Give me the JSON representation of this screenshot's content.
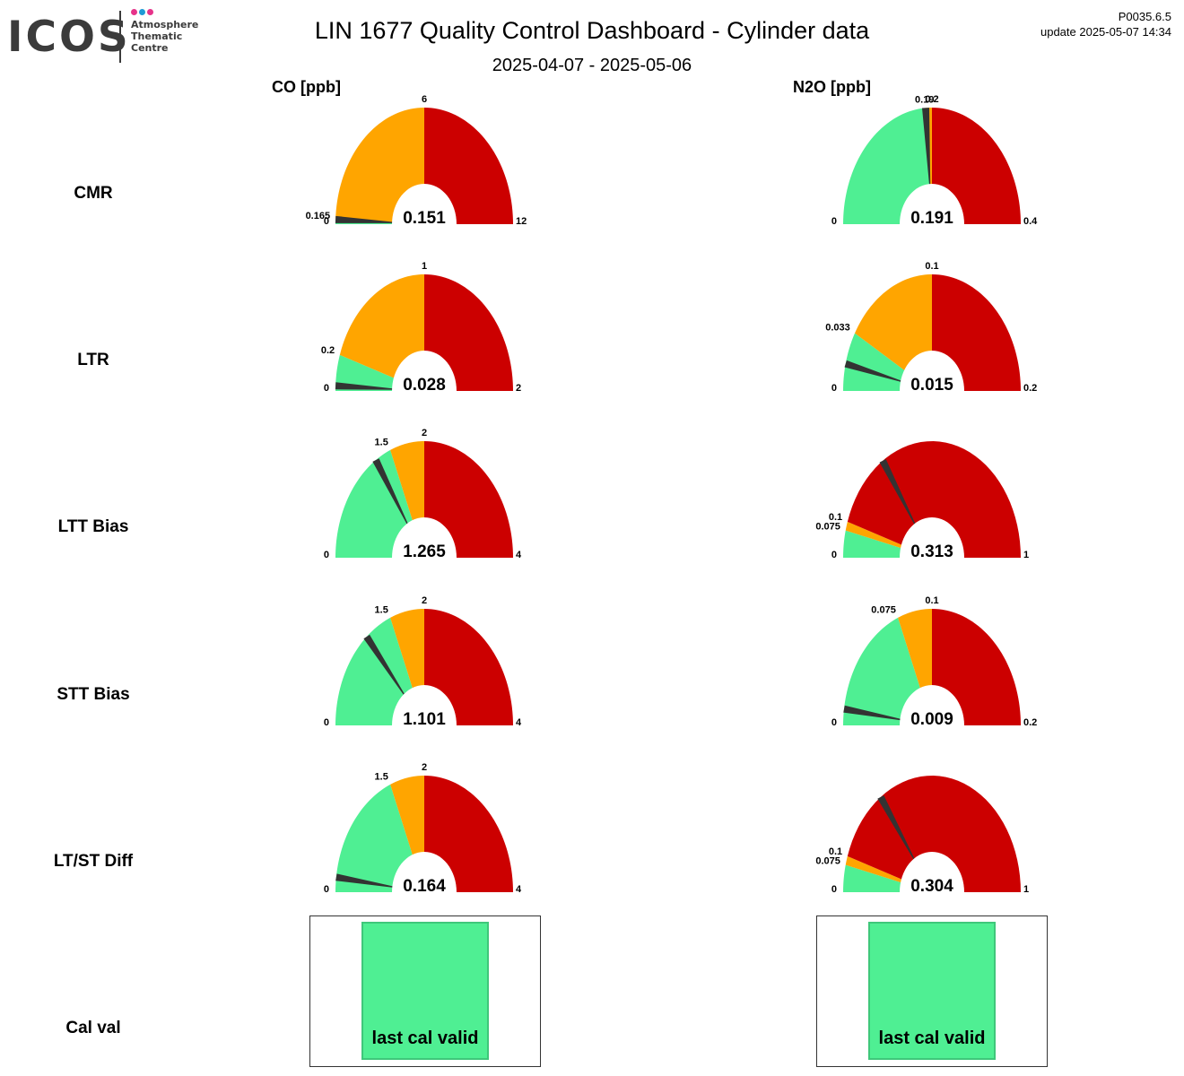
{
  "header": {
    "logo_text": "ICOS",
    "logo_subtitle": [
      "Atmosphere",
      "Thematic",
      "Centre"
    ],
    "logo_dot_colors": [
      "#e6338a",
      "#1f9bd6",
      "#e6338a"
    ],
    "title": "LIN 1677 Quality Control Dashboard - Cylinder data",
    "date_range": "2025-04-07 - 2025-05-06",
    "version": "P0035.6.5",
    "update": "update  2025-05-07 14:34"
  },
  "columns": [
    {
      "key": "co",
      "label": "CO [ppb]"
    },
    {
      "key": "n2o",
      "label": "N2O [ppb]"
    }
  ],
  "rows": [
    "CMR",
    "LTR",
    "LTT Bias",
    "STT Bias",
    "LT/ST Diff",
    "Cal val"
  ],
  "colors": {
    "good": "#4fef93",
    "warn": "#ffa500",
    "bad": "#cc0000",
    "needle": "#333333"
  },
  "chart_data": [
    {
      "type": "gauge",
      "row": "CMR",
      "column": "CO [ppb]",
      "value": 0.151,
      "value_label": "0.151",
      "min": 0,
      "max": 12,
      "green_to": 0.165,
      "orange_to": 6,
      "min_label": "0",
      "max_label": "12",
      "green_label": "0.165",
      "orange_label": "6"
    },
    {
      "type": "gauge",
      "row": "CMR",
      "column": "N2O [ppb]",
      "value": 0.191,
      "value_label": "0.191",
      "min": 0,
      "max": 0.4,
      "green_to": 0.19,
      "orange_to": 0.2,
      "min_label": "0",
      "max_label": "0.4",
      "green_label": "0.19",
      "orange_label": "0.2"
    },
    {
      "type": "gauge",
      "row": "LTR",
      "column": "CO [ppb]",
      "value": 0.028,
      "value_label": "0.028",
      "min": 0,
      "max": 2,
      "green_to": 0.2,
      "orange_to": 1,
      "min_label": "0",
      "max_label": "2",
      "green_label": "0.2",
      "orange_label": "1"
    },
    {
      "type": "gauge",
      "row": "LTR",
      "column": "N2O [ppb]",
      "value": 0.015,
      "value_label": "0.015",
      "min": 0,
      "max": 0.2,
      "green_to": 0.033,
      "orange_to": 0.1,
      "min_label": "0",
      "max_label": "0.2",
      "green_label": "0.033",
      "orange_label": "0.1"
    },
    {
      "type": "gauge",
      "row": "LTT Bias",
      "column": "CO [ppb]",
      "value": 1.265,
      "value_label": "1.265",
      "min": 0,
      "max": 4,
      "green_to": 1.5,
      "orange_to": 2,
      "min_label": "0",
      "max_label": "4",
      "green_label": "1.5",
      "orange_label": "2"
    },
    {
      "type": "gauge",
      "row": "LTT Bias",
      "column": "N2O [ppb]",
      "value": 0.313,
      "value_label": "0.313",
      "min": 0,
      "max": 1,
      "green_to": 0.075,
      "orange_to": 0.1,
      "min_label": "0",
      "max_label": "1",
      "green_label": "0.075",
      "orange_label": "0.1"
    },
    {
      "type": "gauge",
      "row": "STT Bias",
      "column": "CO [ppb]",
      "value": 1.101,
      "value_label": "1.101",
      "min": 0,
      "max": 4,
      "green_to": 1.5,
      "orange_to": 2,
      "min_label": "0",
      "max_label": "4",
      "green_label": "1.5",
      "orange_label": "2"
    },
    {
      "type": "gauge",
      "row": "STT Bias",
      "column": "N2O [ppb]",
      "value": 0.009,
      "value_label": "0.009",
      "min": 0,
      "max": 0.2,
      "green_to": 0.075,
      "orange_to": 0.1,
      "min_label": "0",
      "max_label": "0.2",
      "green_label": "0.075",
      "orange_label": "0.1"
    },
    {
      "type": "gauge",
      "row": "LT/ST Diff",
      "column": "CO [ppb]",
      "value": 0.164,
      "value_label": "0.164",
      "min": 0,
      "max": 4,
      "green_to": 1.5,
      "orange_to": 2,
      "min_label": "0",
      "max_label": "4",
      "green_label": "1.5",
      "orange_label": "2"
    },
    {
      "type": "gauge",
      "row": "LT/ST Diff",
      "column": "N2O [ppb]",
      "value": 0.304,
      "value_label": "0.304",
      "min": 0,
      "max": 1,
      "green_to": 0.075,
      "orange_to": 0.1,
      "min_label": "0",
      "max_label": "1",
      "green_label": "0.075",
      "orange_label": "0.1"
    }
  ],
  "cal_val": [
    {
      "column": "CO [ppb]",
      "status": "last cal valid"
    },
    {
      "column": "N2O [ppb]",
      "status": "last cal valid"
    }
  ]
}
